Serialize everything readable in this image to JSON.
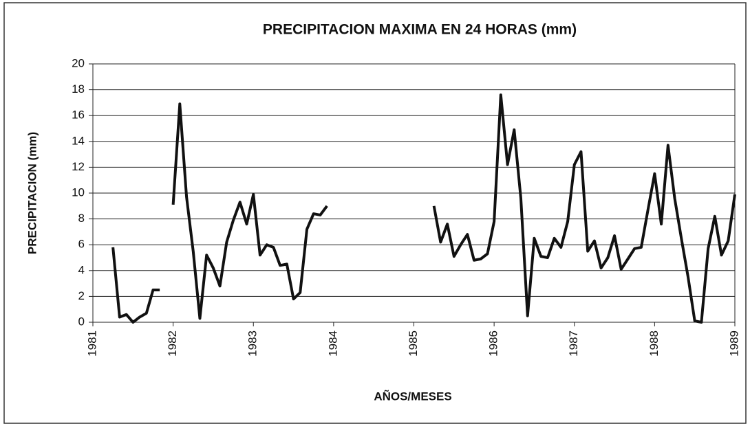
{
  "chart_data": {
    "type": "line",
    "title": "PRECIPITACION  MAXIMA EN 24 HORAS  (mm)",
    "x_label": "AÑOS/MESES",
    "y_label": "PRECIPITACION (mm)",
    "color": "#111111",
    "grid": true,
    "xlim": [
      1981,
      1989
    ],
    "xticks": [
      1981,
      1982,
      1983,
      1984,
      1985,
      1986,
      1987,
      1988,
      1989
    ],
    "ylim": [
      0,
      20
    ],
    "yticks": [
      0,
      2,
      4,
      6,
      8,
      10,
      12,
      14,
      16,
      18,
      20
    ],
    "x": [
      1981.25,
      1981.333,
      1981.417,
      1981.5,
      1981.583,
      1981.667,
      1981.75,
      1981.833,
      1981.917,
      1982.0,
      1982.083,
      1982.167,
      1982.25,
      1982.333,
      1982.417,
      1982.5,
      1982.583,
      1982.667,
      1982.75,
      1982.833,
      1982.917,
      1983.0,
      1983.083,
      1983.167,
      1983.25,
      1983.333,
      1983.417,
      1983.5,
      1983.583,
      1983.667,
      1983.75,
      1983.833,
      1983.917,
      1984.0,
      1985.25,
      1985.333,
      1985.417,
      1985.5,
      1985.583,
      1985.667,
      1985.75,
      1985.833,
      1985.917,
      1986.0,
      1986.083,
      1986.167,
      1986.25,
      1986.333,
      1986.417,
      1986.5,
      1986.583,
      1986.667,
      1986.75,
      1986.833,
      1986.917,
      1987.0,
      1987.083,
      1987.167,
      1987.25,
      1987.333,
      1987.417,
      1987.5,
      1987.583,
      1987.667,
      1987.75,
      1987.833,
      1987.917,
      1988.0,
      1988.083,
      1988.167,
      1988.25,
      1988.333,
      1988.417,
      1988.5,
      1988.583,
      1988.667,
      1988.75,
      1988.833,
      1988.917,
      1989.0
    ],
    "values": [
      5.8,
      0.4,
      0.6,
      0.0,
      0.4,
      0.7,
      2.5,
      2.5,
      null,
      9.1,
      16.9,
      9.7,
      5.5,
      0.3,
      5.2,
      4.2,
      2.8,
      6.2,
      7.9,
      9.3,
      7.6,
      9.9,
      5.2,
      6.0,
      5.8,
      4.4,
      4.5,
      1.8,
      2.3,
      7.2,
      8.4,
      8.3,
      9.0,
      null,
      9.0,
      6.2,
      7.6,
      5.1,
      6.0,
      6.8,
      4.8,
      4.9,
      5.3,
      7.8,
      17.6,
      12.2,
      14.9,
      9.6,
      0.5,
      6.5,
      5.1,
      5.0,
      6.5,
      5.8,
      7.8,
      12.2,
      13.2,
      5.5,
      6.3,
      4.2,
      5.0,
      6.7,
      4.1,
      4.9,
      5.7,
      5.8,
      8.7,
      11.5,
      7.6,
      13.7,
      9.6,
      6.5,
      3.5,
      0.1,
      0.0,
      5.7,
      8.2,
      5.2,
      6.3,
      9.9
    ]
  }
}
